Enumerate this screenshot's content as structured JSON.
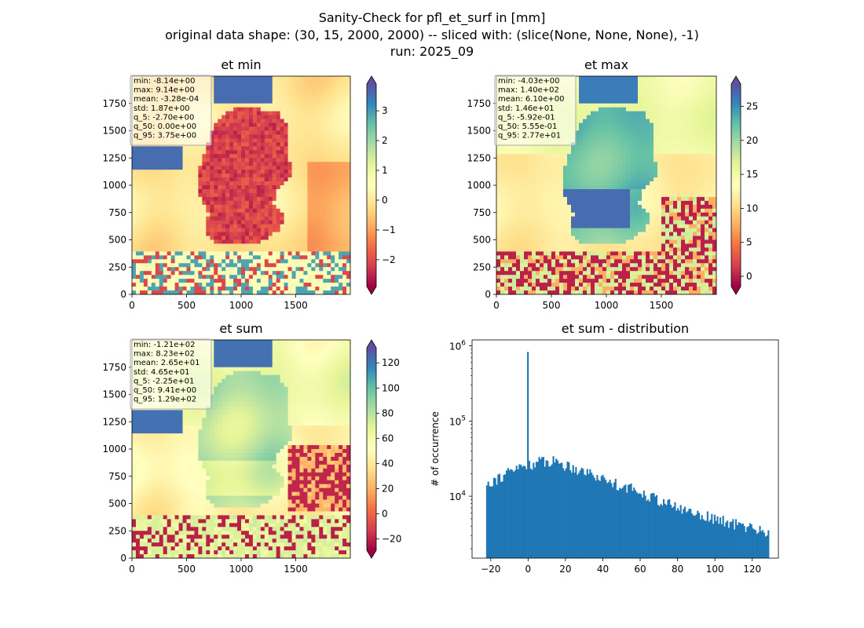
{
  "figure": {
    "title_lines": [
      "Sanity-Check for pfl_et_surf in [mm]",
      "original data shape: (30, 15, 2000, 2000) -- sliced with: (slice(None, None, None), -1)",
      "run: 2025_09"
    ]
  },
  "chart_data": [
    {
      "type": "heatmap",
      "title": "et min",
      "xlabel": "",
      "ylabel": "",
      "xlim": [
        0,
        2000
      ],
      "ylim": [
        0,
        2000
      ],
      "xticks": [
        "0",
        "500",
        "1000",
        "1500"
      ],
      "yticks": [
        "0",
        "250",
        "500",
        "750",
        "1000",
        "1250",
        "1500",
        "1750"
      ],
      "colorbar": {
        "range": [
          -2.9,
          3.9
        ],
        "ticks": [
          "3",
          "2",
          "1",
          "0",
          "−1",
          "−2"
        ],
        "tick_values": [
          3,
          2,
          1,
          0,
          -1,
          -2
        ],
        "colormap": "Spectral",
        "extend": "both"
      },
      "stats": [
        "min: -8.14e+00",
        "max: 9.14e+00",
        "mean: -3.28e-04",
        "std: 1.87e+00",
        "q_5: -2.70e+00",
        "q_50: 0.00e+00",
        "q_95: 3.75e+00"
      ]
    },
    {
      "type": "heatmap",
      "title": "et max",
      "xlabel": "",
      "ylabel": "",
      "xlim": [
        0,
        2000
      ],
      "ylim": [
        0,
        2000
      ],
      "xticks": [
        "0",
        "500",
        "1000",
        "1500"
      ],
      "yticks": [
        "0",
        "250",
        "500",
        "750",
        "1000",
        "1250",
        "1500",
        "1750"
      ],
      "colorbar": {
        "range": [
          -1.5,
          28.3
        ],
        "ticks": [
          "25",
          "20",
          "15",
          "10",
          "5",
          "0"
        ],
        "tick_values": [
          25,
          20,
          15,
          10,
          5,
          0
        ],
        "colormap": "Spectral",
        "extend": "both"
      },
      "stats": [
        "min: -4.03e+00",
        "max: 1.40e+02",
        "mean: 6.10e+00",
        "std: 1.46e+01",
        "q_5: -5.92e-01",
        "q_50: 5.55e-01",
        "q_95: 2.77e+01"
      ]
    },
    {
      "type": "heatmap",
      "title": "et sum",
      "xlabel": "",
      "ylabel": "",
      "xlim": [
        0,
        2000
      ],
      "ylim": [
        0,
        2000
      ],
      "xticks": [
        "0",
        "500",
        "1000",
        "1500"
      ],
      "yticks": [
        "0",
        "250",
        "500",
        "750",
        "1000",
        "1250",
        "1500",
        "1750"
      ],
      "colorbar": {
        "range": [
          -29,
          132
        ],
        "ticks": [
          "120",
          "100",
          "80",
          "60",
          "40",
          "20",
          "0",
          "−20"
        ],
        "tick_values": [
          120,
          100,
          80,
          60,
          40,
          20,
          0,
          -20
        ],
        "colormap": "Spectral",
        "extend": "both"
      },
      "stats": [
        "min: -1.21e+02",
        "max: 8.23e+02",
        "mean: 2.65e+01",
        "std: 4.65e+01",
        "q_5: -2.25e+01",
        "q_50: 9.41e+00",
        "q_95: 1.29e+02"
      ]
    },
    {
      "type": "bar",
      "title": "et sum - distribution",
      "xlabel": "",
      "ylabel": "# of occurrence",
      "yscale": "log",
      "xlim": [
        -30,
        134
      ],
      "ylim": [
        1500,
        1200000
      ],
      "xticks": [
        "−20",
        "0",
        "20",
        "40",
        "60",
        "80",
        "100",
        "120"
      ],
      "xtick_values": [
        -20,
        0,
        20,
        40,
        60,
        80,
        100,
        120
      ],
      "yticks": [
        "10^4",
        "10^5",
        "10^6"
      ],
      "ytick_values": [
        10000,
        100000,
        1000000
      ],
      "color": "#1f77b4",
      "bin_range": [
        -22.5,
        129
      ],
      "bins": 200,
      "peak": {
        "x": 0,
        "count": 830000
      },
      "profile_x": [
        -22.5,
        -20,
        -15,
        -10,
        -5,
        -1,
        5,
        10,
        15,
        20,
        30,
        40,
        50,
        60,
        70,
        80,
        90,
        100,
        110,
        120,
        129
      ],
      "profile_count": [
        15000,
        16000,
        18000,
        21000,
        24000,
        26000,
        28000,
        30000,
        29000,
        26000,
        22000,
        17000,
        14000,
        11500,
        9000,
        7000,
        6000,
        5000,
        4300,
        3800,
        3300
      ]
    }
  ]
}
